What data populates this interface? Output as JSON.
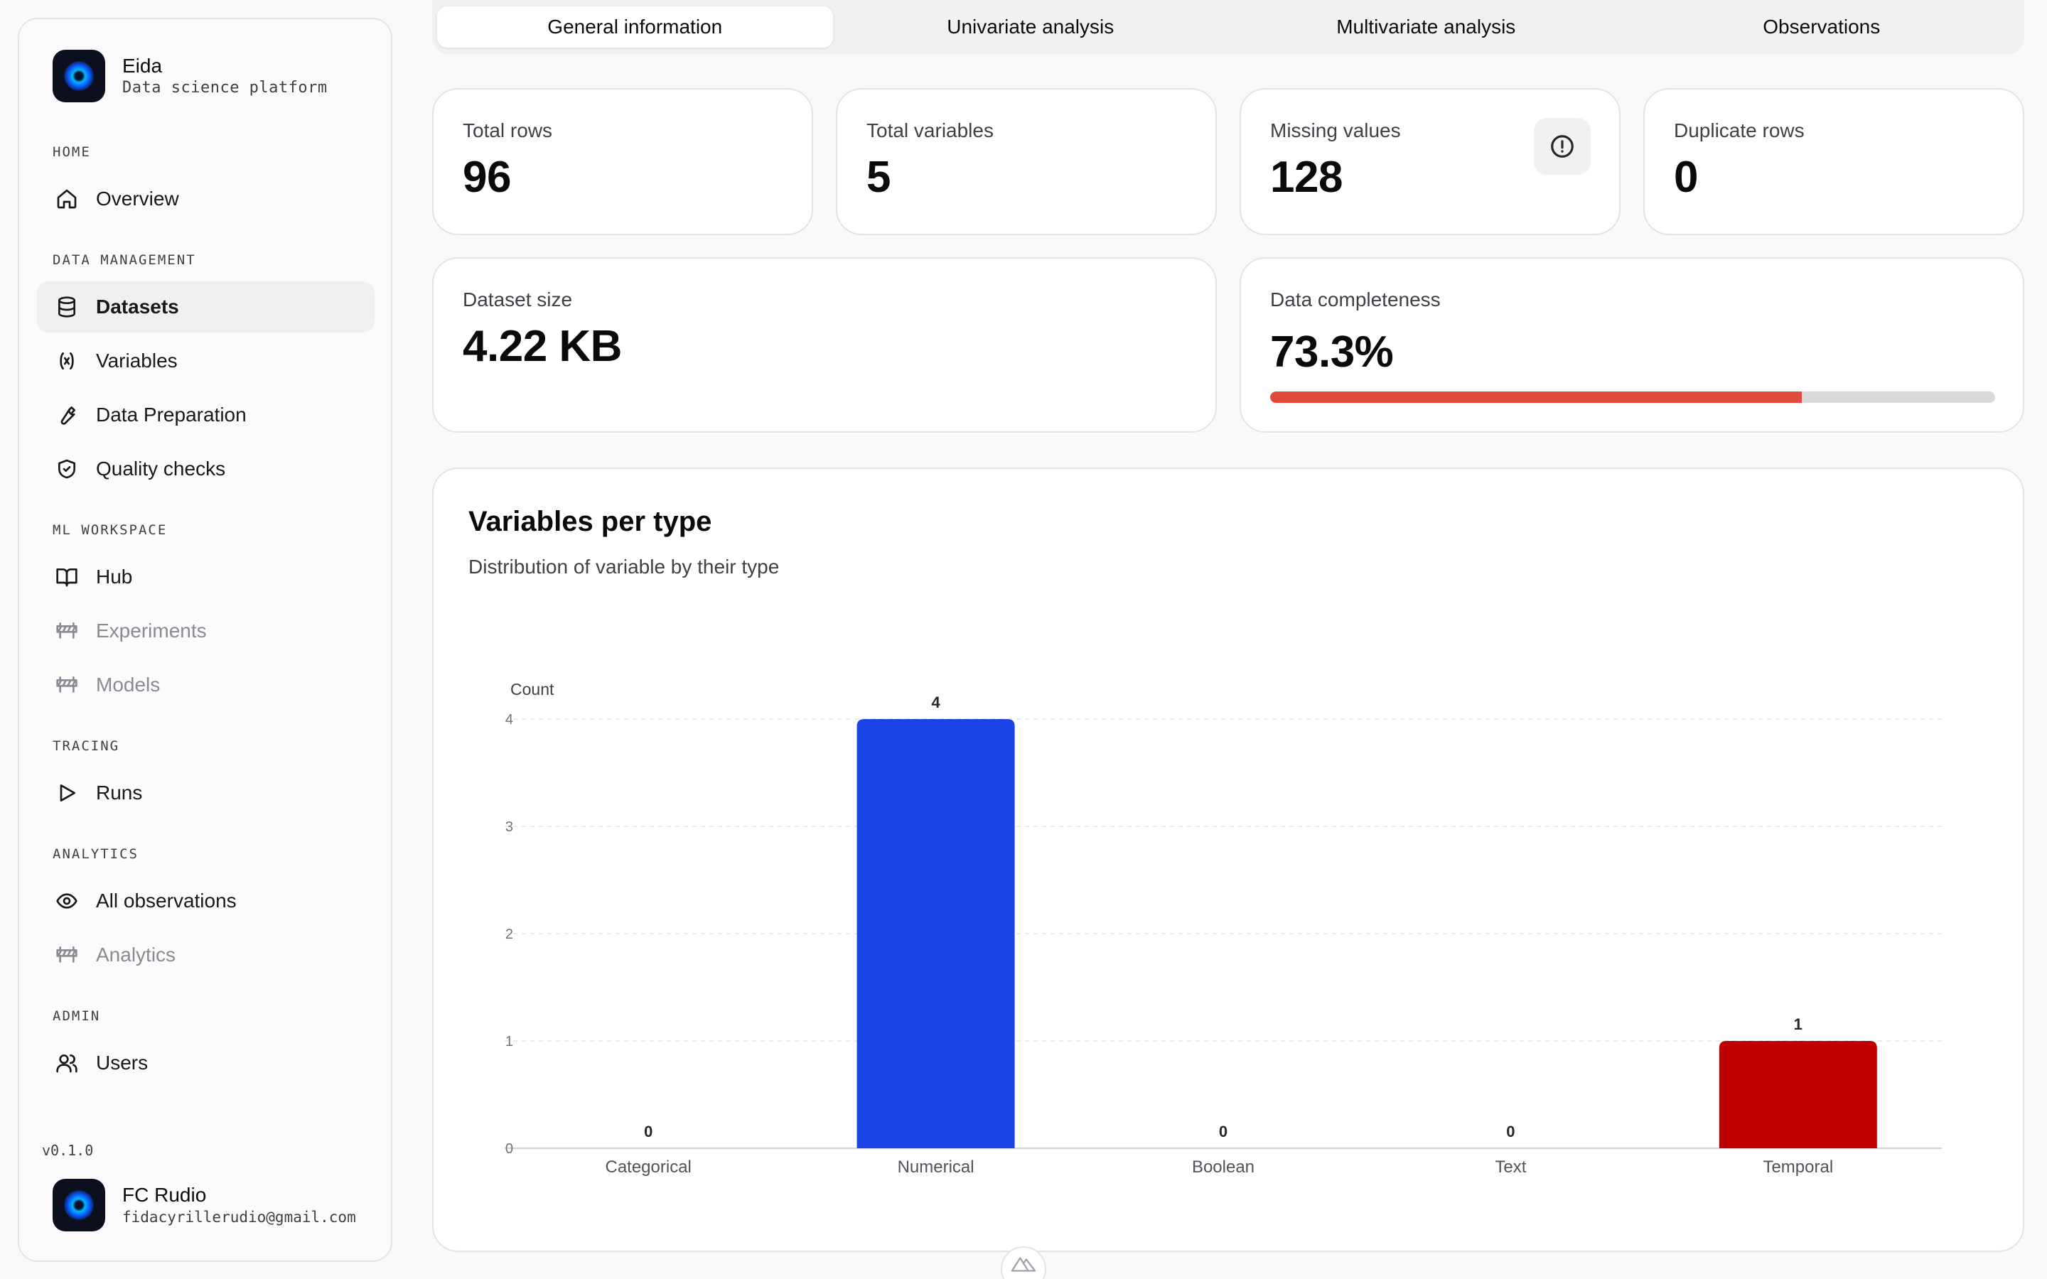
{
  "app": {
    "name": "Eida",
    "subtitle": "Data science platform",
    "version": "v0.1.0"
  },
  "user": {
    "name": "FC Rudio",
    "email": "fidacyrillerudio@gmail.com"
  },
  "sidebar": {
    "sections": [
      {
        "label": "HOME",
        "items": [
          {
            "label": "Overview",
            "icon": "home-icon"
          }
        ]
      },
      {
        "label": "DATA MANAGEMENT",
        "items": [
          {
            "label": "Datasets",
            "icon": "database-icon",
            "active": true
          },
          {
            "label": "Variables",
            "icon": "variable-icon"
          },
          {
            "label": "Data Preparation",
            "icon": "wrench-icon"
          },
          {
            "label": "Quality checks",
            "icon": "shield-check-icon"
          }
        ]
      },
      {
        "label": "ML WORKSPACE",
        "items": [
          {
            "label": "Hub",
            "icon": "book-open-icon"
          },
          {
            "label": "Experiments",
            "icon": "construction-icon",
            "disabled": true
          },
          {
            "label": "Models",
            "icon": "construction-icon",
            "disabled": true
          }
        ]
      },
      {
        "label": "TRACING",
        "items": [
          {
            "label": "Runs",
            "icon": "play-icon"
          }
        ]
      },
      {
        "label": "ANALYTICS",
        "items": [
          {
            "label": "All observations",
            "icon": "eye-icon"
          },
          {
            "label": "Analytics",
            "icon": "construction-icon",
            "disabled": true
          }
        ]
      },
      {
        "label": "ADMIN",
        "items": [
          {
            "label": "Users",
            "icon": "users-icon"
          }
        ]
      }
    ]
  },
  "tabs": [
    {
      "label": "General information",
      "active": true
    },
    {
      "label": "Univariate analysis"
    },
    {
      "label": "Multivariate analysis"
    },
    {
      "label": "Observations"
    }
  ],
  "stats": {
    "total_rows": {
      "label": "Total rows",
      "value": "96"
    },
    "total_variables": {
      "label": "Total variables",
      "value": "5"
    },
    "missing_values": {
      "label": "Missing values",
      "value": "128"
    },
    "duplicate_rows": {
      "label": "Duplicate rows",
      "value": "0"
    },
    "dataset_size": {
      "label": "Dataset size",
      "value": "4.22 KB"
    },
    "completeness": {
      "label": "Data completeness",
      "value": "73.3%",
      "fraction": 0.733,
      "color": "#e04a3c"
    }
  },
  "chart": {
    "title": "Variables per type",
    "subtitle": "Distribution of variable by their type"
  },
  "chart_data": {
    "type": "bar",
    "categories": [
      "Categorical",
      "Numerical",
      "Boolean",
      "Text",
      "Temporal"
    ],
    "values": [
      0,
      4,
      0,
      0,
      1
    ],
    "colors": [
      "#1a44e6",
      "#1a44e6",
      "#1a44e6",
      "#1a44e6",
      "#c00000"
    ],
    "ylabel": "Count",
    "ylim": [
      0,
      4
    ],
    "yticks": [
      0,
      1,
      2,
      3,
      4
    ],
    "grid": true,
    "data_labels": true
  }
}
